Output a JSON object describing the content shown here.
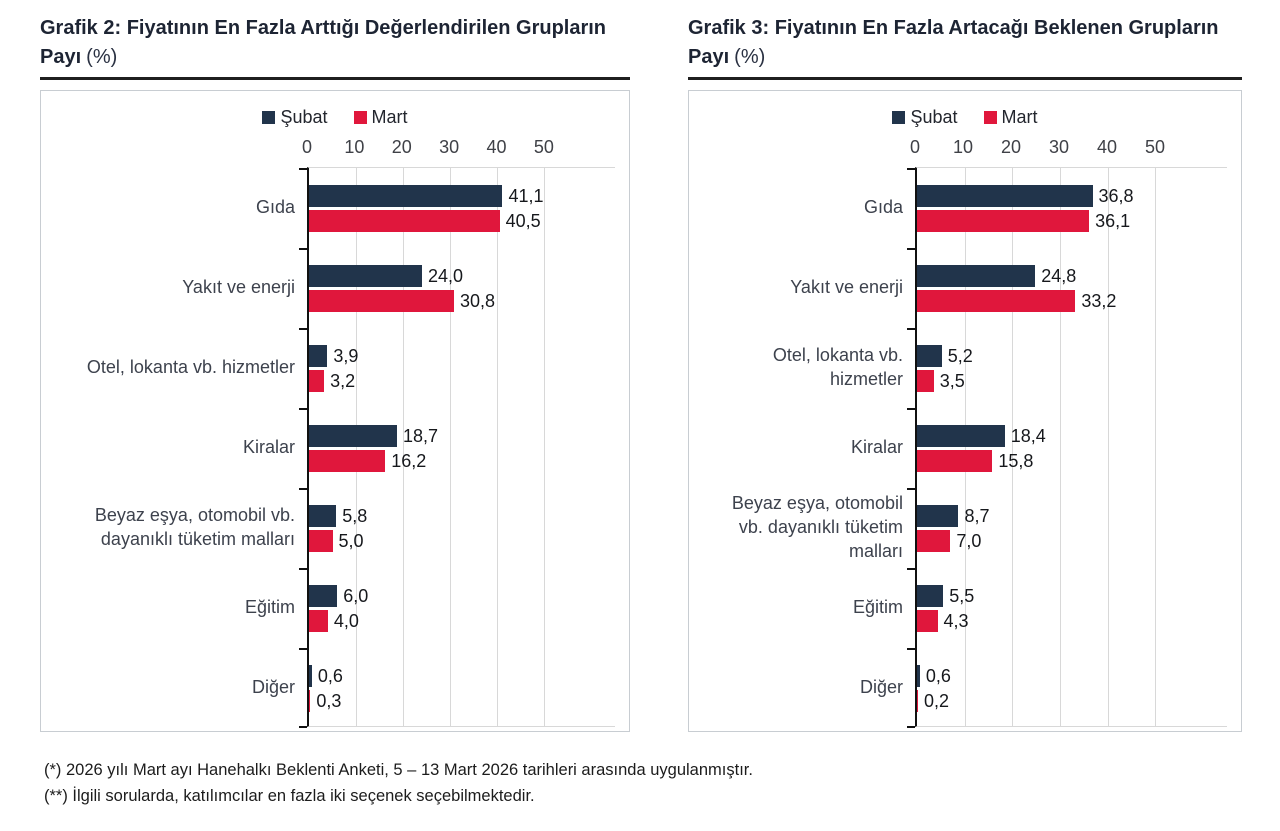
{
  "chart_data": [
    {
      "type": "bar",
      "orientation": "horizontal",
      "title": "Grafik 2: Fiyatının En Fazla Arttığı Değerlendirilen Grupların Payı",
      "unit": "(%)",
      "categories": [
        "Gıda",
        "Yakıt ve enerji",
        "Otel, lokanta vb. hizmetler",
        "Kiralar",
        "Beyaz eşya, otomobil vb. dayanıklı tüketim malları",
        "Eğitim",
        "Diğer"
      ],
      "series": [
        {
          "name": "Şubat",
          "color": "#21344b",
          "values": [
            41.1,
            24.0,
            3.9,
            18.7,
            5.8,
            6.0,
            0.6
          ],
          "labels": [
            "41,1",
            "24,0",
            "3,9",
            "18,7",
            "5,8",
            "6,0",
            "0,6"
          ]
        },
        {
          "name": "Mart",
          "color": "#e0173c",
          "values": [
            40.5,
            30.8,
            3.2,
            16.2,
            5.0,
            4.0,
            0.3
          ],
          "labels": [
            "40,5",
            "30,8",
            "3,2",
            "16,2",
            "5,0",
            "4,0",
            "0,3"
          ]
        }
      ],
      "x_ticks": [
        0,
        10,
        20,
        30,
        40,
        50
      ],
      "xlim": [
        0,
        50
      ],
      "grid": true,
      "legend_position": "top"
    },
    {
      "type": "bar",
      "orientation": "horizontal",
      "title": "Grafik 3: Fiyatının En Fazla Artacağı Beklenen Grupların Payı",
      "unit": "(%)",
      "categories": [
        "Gıda",
        "Yakıt ve enerji",
        "Otel, lokanta vb. hizmetler",
        "Kiralar",
        "Beyaz eşya, otomobil vb. dayanıklı tüketim malları",
        "Eğitim",
        "Diğer"
      ],
      "series": [
        {
          "name": "Şubat",
          "color": "#21344b",
          "values": [
            36.8,
            24.8,
            5.2,
            18.4,
            8.7,
            5.5,
            0.6
          ],
          "labels": [
            "36,8",
            "24,8",
            "5,2",
            "18,4",
            "8,7",
            "5,5",
            "0,6"
          ]
        },
        {
          "name": "Mart",
          "color": "#e0173c",
          "values": [
            36.1,
            33.2,
            3.5,
            15.8,
            7.0,
            4.3,
            0.2
          ],
          "labels": [
            "36,1",
            "33,2",
            "3,5",
            "15,8",
            "7,0",
            "4,3",
            "0,2"
          ]
        }
      ],
      "x_ticks": [
        0,
        10,
        20,
        30,
        40,
        50
      ],
      "xlim": [
        0,
        50
      ],
      "grid": true,
      "legend_position": "top"
    }
  ],
  "footnotes": [
    "(*) 2026 yılı Mart ayı Hanehalkı Beklenti Anketi, 5 – 13 Mart 2026 tarihleri arasında uygulanmıştır.",
    "(**) İlgili sorularda, katılımcılar en fazla iki seçenek seçebilmektedir."
  ]
}
